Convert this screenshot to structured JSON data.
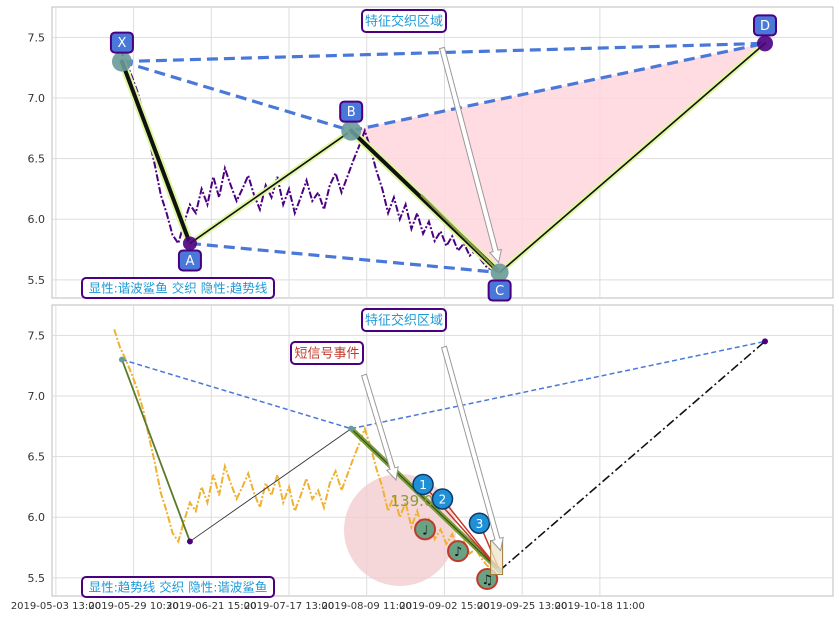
{
  "chart_data": [
    {
      "type": "line",
      "panel": "top",
      "ylim": [
        5.35,
        7.75
      ],
      "yticks": [
        5.5,
        6.0,
        6.5,
        7.0,
        7.5
      ],
      "grid": true,
      "series": [
        {
          "kind": "price",
          "color": "#4b0082",
          "style": "dash-dot",
          "x": [
            0,
            1.5,
            3,
            4.5,
            6,
            7.5,
            9,
            10.5,
            12,
            13.5,
            15,
            16.5,
            18,
            19.5,
            21,
            22.5,
            24,
            25.5,
            27,
            28.5,
            30,
            31.5,
            33,
            34.5,
            36,
            37.5,
            39,
            40.5,
            42,
            43.5,
            45,
            46.5,
            48,
            49.5,
            51,
            52.5,
            54,
            55.5,
            57,
            58.5,
            60,
            61.5,
            63,
            64.5,
            66,
            67.5,
            69,
            70.5,
            72,
            73.5,
            75,
            76.5,
            78,
            79.5,
            81,
            82.5,
            84,
            85.5,
            87,
            88.5,
            90,
            91.5,
            93,
            94.5,
            96,
            97.5,
            99.2
          ],
          "y": [
            7.49,
            7.4,
            7.3,
            7.18,
            7.05,
            6.88,
            6.66,
            6.44,
            6.2,
            6.05,
            5.87,
            5.8,
            5.97,
            6.12,
            6.05,
            6.25,
            6.12,
            6.35,
            6.18,
            6.42,
            6.28,
            6.15,
            6.25,
            6.36,
            6.2,
            6.08,
            6.28,
            6.18,
            6.35,
            6.12,
            6.25,
            6.05,
            6.18,
            6.32,
            6.15,
            6.22,
            6.08,
            6.28,
            6.38,
            6.22,
            6.35,
            6.48,
            6.6,
            6.73,
            6.58,
            6.4,
            6.25,
            6.05,
            6.18,
            6.0,
            6.12,
            5.92,
            6.05,
            5.88,
            5.98,
            5.82,
            5.9,
            5.78,
            5.86,
            5.74,
            5.8,
            5.7,
            5.74,
            5.66,
            5.6,
            5.58,
            5.56
          ]
        }
      ],
      "pattern": {
        "X": {
          "x": 2.0,
          "y": 7.3
        },
        "A": {
          "x": 19.5,
          "y": 5.8
        },
        "B": {
          "x": 61.0,
          "y": 6.73
        },
        "C": {
          "x": 99.2,
          "y": 5.56
        },
        "D": {
          "x": 167.5,
          "y": 7.45
        }
      },
      "point_labels": [
        "X",
        "A",
        "B",
        "C",
        "D"
      ],
      "sub_trend": {
        "x": [
          79,
          99.2
        ],
        "y": [
          6.2,
          5.56
        ]
      },
      "annotations": {
        "region": "特征交织区域",
        "legend_text": "显性:谐波鲨鱼 交织 隐性:趋势线"
      },
      "colors": {
        "dashed": "#4a78d8",
        "label_fill": "#4a78d8",
        "label_border": "#4b0082",
        "fill_region": "#ffd6dc",
        "title_text": "#1f9ad6"
      }
    },
    {
      "type": "line",
      "panel": "bottom",
      "ylim": [
        5.35,
        7.75
      ],
      "yticks": [
        5.5,
        6.0,
        6.5,
        7.0,
        7.5
      ],
      "grid": true,
      "series": [
        {
          "kind": "price",
          "color": "#f0b030",
          "style": "dash-dot",
          "x": [
            0,
            1.5,
            3,
            4.5,
            6,
            7.5,
            9,
            10.5,
            12,
            13.5,
            15,
            16.5,
            18,
            19.5,
            21,
            22.5,
            24,
            25.5,
            27,
            28.5,
            30,
            31.5,
            33,
            34.5,
            36,
            37.5,
            39,
            40.5,
            42,
            43.5,
            45,
            46.5,
            48,
            49.5,
            51,
            52.5,
            54,
            55.5,
            57,
            58.5,
            60,
            61.5,
            63,
            64.5,
            66,
            67.5,
            69,
            70.5,
            72,
            73.5,
            75,
            76.5,
            78,
            79.5,
            81,
            82.5,
            84,
            85.5,
            87,
            88.5,
            90,
            91.5,
            93,
            94.5,
            96,
            97.5,
            99.2
          ],
          "y": [
            7.55,
            7.4,
            7.3,
            7.18,
            7.05,
            6.88,
            6.66,
            6.44,
            6.2,
            6.05,
            5.87,
            5.8,
            5.97,
            6.12,
            6.05,
            6.25,
            6.12,
            6.35,
            6.18,
            6.42,
            6.28,
            6.15,
            6.25,
            6.36,
            6.2,
            6.08,
            6.28,
            6.18,
            6.35,
            6.12,
            6.25,
            6.05,
            6.18,
            6.32,
            6.15,
            6.22,
            6.08,
            6.28,
            6.38,
            6.22,
            6.35,
            6.48,
            6.6,
            6.73,
            6.58,
            6.4,
            6.25,
            6.05,
            6.18,
            6.0,
            6.12,
            5.92,
            6.05,
            5.88,
            5.98,
            5.82,
            5.9,
            5.78,
            5.86,
            5.74,
            5.8,
            5.7,
            5.74,
            5.66,
            5.6,
            5.58,
            5.56
          ]
        }
      ],
      "pattern": {
        "X": {
          "x": 2.0,
          "y": 7.3
        },
        "A": {
          "x": 19.5,
          "y": 5.8
        },
        "B": {
          "x": 61.0,
          "y": 6.73
        },
        "C": {
          "x": 99.2,
          "y": 5.56
        },
        "D": {
          "x": 167.5,
          "y": 7.45
        }
      },
      "markers": [
        {
          "label": "1",
          "x": 79.5,
          "y": 6.27
        },
        {
          "label": "2",
          "x": 84.5,
          "y": 6.15
        },
        {
          "label": "3",
          "x": 94.0,
          "y": 5.95
        }
      ],
      "note_markers": [
        {
          "symbol": "♩",
          "x": 80.0,
          "y": 5.9
        },
        {
          "symbol": "♪",
          "x": 88.5,
          "y": 5.72
        },
        {
          "symbol": "♫",
          "x": 96.0,
          "y": 5.49
        }
      ],
      "value_label": "139.0",
      "annotations": {
        "region": "特征交织区域",
        "event": "短信号事件",
        "legend_text": "显性:趋势线 交织 隐性:谐波鲨鱼"
      },
      "colors": {
        "dashed": "#4a78d8",
        "marker_fill": "#1f8fd6",
        "note_fill": "#6aa383",
        "note_border": "#c0392b",
        "circle_fill": "#f3c9cc",
        "event_text": "#c0392b"
      }
    }
  ],
  "x_axis": {
    "tick_labels": [
      "2019-05-03 13:00",
      "2019-05-29 10:30",
      "2019-06-21 15:00",
      "2019-07-17 13:00",
      "2019-08-09 11:00",
      "2019-09-02 15:00",
      "2019-09-25 13:00",
      "2019-10-18 11:00"
    ],
    "tick_index": [
      -15,
      5,
      25,
      45,
      65,
      85,
      105,
      125
    ],
    "xlim": [
      -16,
      185
    ]
  }
}
